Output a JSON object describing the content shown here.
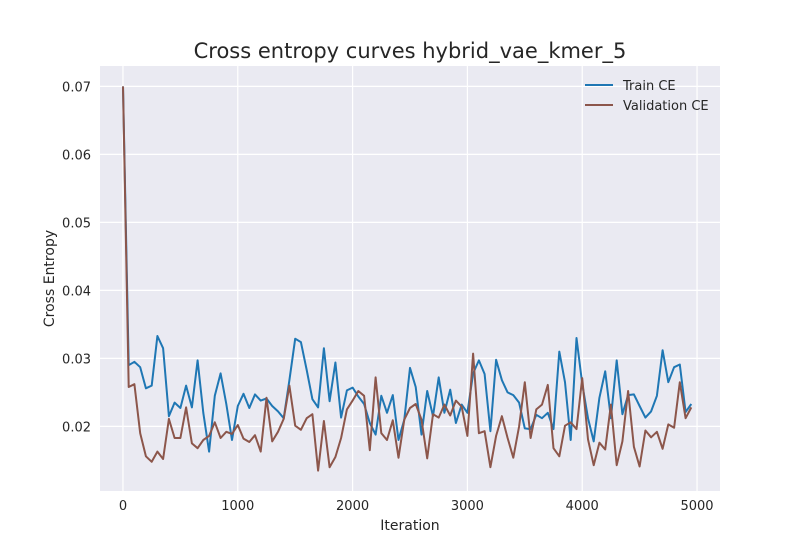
{
  "chart_data": {
    "type": "line",
    "title": "Cross entropy curves hybrid_vae_kmer_5",
    "xlabel": "Iteration",
    "ylabel": "Cross Entropy",
    "xlim": [
      -200,
      5200
    ],
    "ylim": [
      0.0105,
      0.073
    ],
    "x_ticks": [
      0,
      1000,
      2000,
      3000,
      4000,
      5000
    ],
    "y_ticks": [
      0.02,
      0.03,
      0.04,
      0.05,
      0.06,
      0.07
    ],
    "grid": true,
    "legend_position": "top-right",
    "series": [
      {
        "name": "Train CE",
        "color": "#1f77b4",
        "x": [
          0,
          50,
          100,
          150,
          200,
          250,
          300,
          350,
          400,
          450,
          500,
          550,
          600,
          650,
          700,
          750,
          800,
          850,
          900,
          950,
          1000,
          1050,
          1100,
          1150,
          1200,
          1250,
          1300,
          1350,
          1400,
          1450,
          1500,
          1550,
          1600,
          1650,
          1700,
          1750,
          1800,
          1850,
          1900,
          1950,
          2000,
          2050,
          2100,
          2150,
          2200,
          2250,
          2300,
          2350,
          2400,
          2450,
          2500,
          2550,
          2600,
          2650,
          2700,
          2750,
          2800,
          2850,
          2900,
          2950,
          3000,
          3050,
          3100,
          3150,
          3200,
          3250,
          3300,
          3350,
          3400,
          3450,
          3500,
          3550,
          3600,
          3650,
          3700,
          3750,
          3800,
          3850,
          3900,
          3950,
          4000,
          4050,
          4100,
          4150,
          4200,
          4250,
          4300,
          4350,
          4400,
          4450,
          4500,
          4550,
          4600,
          4650,
          4700,
          4750,
          4800,
          4850,
          4900,
          4950
        ],
        "values": [
          0.07,
          0.029,
          0.0295,
          0.0287,
          0.0256,
          0.026,
          0.0333,
          0.0315,
          0.0215,
          0.0235,
          0.0227,
          0.026,
          0.0228,
          0.0297,
          0.022,
          0.0163,
          0.0245,
          0.0278,
          0.0233,
          0.018,
          0.023,
          0.0248,
          0.0227,
          0.0247,
          0.0238,
          0.0241,
          0.023,
          0.0222,
          0.0212,
          0.0268,
          0.0329,
          0.0324,
          0.0283,
          0.024,
          0.0228,
          0.0315,
          0.0237,
          0.0294,
          0.0213,
          0.0253,
          0.0257,
          0.0244,
          0.0233,
          0.0205,
          0.0188,
          0.0245,
          0.022,
          0.0246,
          0.018,
          0.021,
          0.0286,
          0.0258,
          0.0188,
          0.0252,
          0.0215,
          0.0272,
          0.022,
          0.0254,
          0.0205,
          0.0232,
          0.022,
          0.0278,
          0.0297,
          0.0277,
          0.0193,
          0.0298,
          0.0268,
          0.025,
          0.0246,
          0.0235,
          0.0197,
          0.0196,
          0.0217,
          0.0212,
          0.022,
          0.0196,
          0.031,
          0.0265,
          0.018,
          0.033,
          0.0263,
          0.0212,
          0.0178,
          0.0242,
          0.0281,
          0.0212,
          0.0297,
          0.0218,
          0.0246,
          0.0247,
          0.023,
          0.0213,
          0.0222,
          0.0245,
          0.0312,
          0.0265,
          0.0287,
          0.0291,
          0.0221,
          0.0233
        ]
      },
      {
        "name": "Validation CE",
        "color": "#8c564b",
        "x": [
          0,
          50,
          100,
          150,
          200,
          250,
          300,
          350,
          400,
          450,
          500,
          550,
          600,
          650,
          700,
          750,
          800,
          850,
          900,
          950,
          1000,
          1050,
          1100,
          1150,
          1200,
          1250,
          1300,
          1350,
          1400,
          1450,
          1500,
          1550,
          1600,
          1650,
          1700,
          1750,
          1800,
          1850,
          1900,
          1950,
          2000,
          2050,
          2100,
          2150,
          2200,
          2250,
          2300,
          2350,
          2400,
          2450,
          2500,
          2550,
          2600,
          2650,
          2700,
          2750,
          2800,
          2850,
          2900,
          2950,
          3000,
          3050,
          3100,
          3150,
          3200,
          3250,
          3300,
          3350,
          3400,
          3450,
          3500,
          3550,
          3600,
          3650,
          3700,
          3750,
          3800,
          3850,
          3900,
          3950,
          4000,
          4050,
          4100,
          4150,
          4200,
          4250,
          4300,
          4350,
          4400,
          4450,
          4500,
          4550,
          4600,
          4650,
          4700,
          4750,
          4800,
          4850,
          4900,
          4950
        ],
        "values": [
          0.07,
          0.0258,
          0.0262,
          0.019,
          0.0156,
          0.0148,
          0.0163,
          0.0152,
          0.0211,
          0.0183,
          0.0183,
          0.0228,
          0.0175,
          0.0168,
          0.018,
          0.0186,
          0.0206,
          0.0183,
          0.0192,
          0.0189,
          0.0202,
          0.0182,
          0.0177,
          0.0187,
          0.0163,
          0.0242,
          0.0178,
          0.0192,
          0.0211,
          0.026,
          0.0201,
          0.0195,
          0.0212,
          0.0218,
          0.0135,
          0.0208,
          0.014,
          0.0155,
          0.0183,
          0.0225,
          0.0238,
          0.0252,
          0.0245,
          0.0165,
          0.0272,
          0.019,
          0.018,
          0.0209,
          0.0154,
          0.021,
          0.0227,
          0.0233,
          0.021,
          0.0153,
          0.0218,
          0.0213,
          0.0232,
          0.0216,
          0.0238,
          0.0229,
          0.0186,
          0.0307,
          0.019,
          0.0193,
          0.014,
          0.0186,
          0.0215,
          0.0183,
          0.0154,
          0.02,
          0.0265,
          0.0183,
          0.0225,
          0.0232,
          0.0261,
          0.0168,
          0.0156,
          0.0201,
          0.0206,
          0.0196,
          0.0271,
          0.0181,
          0.0143,
          0.0176,
          0.0166,
          0.0232,
          0.0143,
          0.0178,
          0.0252,
          0.017,
          0.0141,
          0.0194,
          0.0184,
          0.0192,
          0.0167,
          0.0203,
          0.0198,
          0.0265,
          0.0212,
          0.0228
        ]
      }
    ]
  }
}
